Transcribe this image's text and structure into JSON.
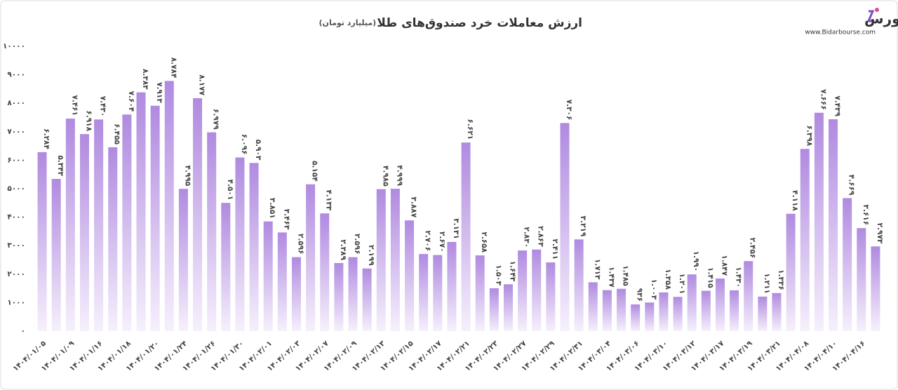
{
  "chart_data": {
    "type": "bar",
    "title": "ارزش معاملات خرد صندوق‌های طلا",
    "subtitle": "(میلیارد تومان)",
    "categories": [
      "۱۴۰۴/۰۱/۰۵",
      null,
      "۱۴۰۴/۰۱/۰۹",
      null,
      "۱۴۰۴/۰۱/۱۶",
      null,
      "۱۴۰۴/۰۱/۱۸",
      null,
      "۱۴۰۴/۰۱/۲۰",
      null,
      "۱۴۰۴/۰۱/۲۴",
      null,
      "۱۴۰۴/۰۱/۲۶",
      null,
      "۱۴۰۴/۰۱/۳۰",
      null,
      "۱۴۰۴/۰۲/۰۱",
      null,
      "۱۴۰۴/۰۲/۰۳",
      null,
      "۱۴۰۴/۰۲/۰۷",
      null,
      "۱۴۰۴/۰۲/۰۹",
      null,
      "۱۴۰۴/۰۲/۱۳",
      null,
      "۱۴۰۴/۰۲/۱۵",
      null,
      "۱۴۰۴/۰۲/۱۷",
      null,
      "۱۴۰۴/۰۲/۲۱",
      null,
      "۱۴۰۴/۰۲/۲۳",
      null,
      "۱۴۰۴/۰۲/۲۷",
      null,
      "۱۴۰۴/۰۲/۲۹",
      null,
      "۱۴۰۴/۰۲/۳۱",
      null,
      "۱۴۰۴/۰۳/۰۴",
      null,
      "۱۴۰۴/۰۳/۰۶",
      null,
      "۱۴۰۴/۰۳/۱۰",
      null,
      "۱۴۰۴/۰۳/۱۲",
      null,
      "۱۴۰۴/۰۳/۱۷",
      null,
      "۱۴۰۴/۰۳/۱۹",
      null,
      "۱۴۰۴/۰۳/۲۱",
      null,
      "۱۴۰۴/۰۴/۰۸",
      null,
      "۱۴۰۴/۰۴/۱۰",
      null,
      "۱۴۰۴/۰۴/۱۶",
      null
    ],
    "values": [
      6284,
      5343,
      7461,
      6918,
      7430,
      6455,
      7604,
      8383,
      7913,
      8784,
      4995,
      8177,
      6979,
      4501,
      6096,
      5903,
      3851,
      3463,
      2596,
      5154,
      4133,
      2389,
      2596,
      2199,
      4985,
      4999,
      3887,
      2706,
      2670,
      3131,
      6621,
      2658,
      1503,
      1643,
      2830,
      2863,
      2411,
      7306,
      3219,
      1713,
      1437,
      1485,
      936,
      1003,
      1358,
      1201,
      1990,
      1415,
      1847,
      1430,
      2456,
      1211,
      1336,
      4118,
      6398,
      7666,
      7439,
      4669,
      3616,
      2973
    ],
    "value_labels": [
      "۶.۲۸۴",
      "۵.۳۴۳",
      "۷.۴۶۱",
      "۶.۹۱۸",
      "۷.۴۳۰",
      "۶.۴۵۵",
      "۷.۶۰۴",
      "۸.۳۸۳",
      "۷.۹۱۳",
      "۸.۷۸۴",
      "۴.۹۹۵",
      "۸.۱۷۷",
      "۶.۹۷۹",
      "۴.۵۰۱",
      "۶.۰۹۶",
      "۵.۹۰۳",
      "۳.۸۵۱",
      "۳.۴۶۳",
      "۲.۵۹۶",
      "۵.۱۵۴",
      "۴.۱۳۳",
      "۲.۳۸۹",
      "۲.۵۹۶",
      "۲.۱۹۹",
      "۴.۹۸۵",
      "۴.۹۹۹",
      "۳.۸۸۷",
      "۲.۷۰۶",
      "۲.۶۷۰",
      "۳.۱۳۱",
      "۶.۶۲۱",
      "۲.۶۵۸",
      "۱.۵۰۳",
      "۱.۶۴۳",
      "۲.۸۳۰",
      "۲.۸۶۳",
      "۲.۴۱۱",
      "۷.۳۰۶",
      "۳.۲۱۹",
      "۱.۷۱۳",
      "۱.۴۳۷",
      "۱.۴۸۵",
      "۹۳۶",
      "۱.۰۰۳",
      "۱.۳۵۸",
      "۱.۲۰۱",
      "۱.۹۹۰",
      "۱.۴۱۵",
      "۱.۸۴۷",
      "۱.۴۳۰",
      "۲.۴۵۶",
      "۱.۲۱۱",
      "۱.۳۳۶",
      "۴.۱۱۸",
      "۶.۳۹۸",
      "۷.۶۶۶",
      "۷.۴۳۹",
      "۴.۶۶۹",
      "۳.۶۱۶",
      "۲.۹۷۳"
    ],
    "color": "#b08ae0",
    "ylim": [
      0,
      10000
    ],
    "yticks": [
      {
        "value": 0,
        "label": "۰"
      },
      {
        "value": 1000,
        "label": "۱۰۰۰"
      },
      {
        "value": 2000,
        "label": "۲۰۰۰"
      },
      {
        "value": 3000,
        "label": "۳۰۰۰"
      },
      {
        "value": 4000,
        "label": "۴۰۰۰"
      },
      {
        "value": 5000,
        "label": "۵۰۰۰"
      },
      {
        "value": 6000,
        "label": "۶۰۰۰"
      },
      {
        "value": 7000,
        "label": "۷۰۰۰"
      },
      {
        "value": 8000,
        "label": "۸۰۰۰"
      },
      {
        "value": 9000,
        "label": "۹۰۰۰"
      },
      {
        "value": 10000,
        "label": "۱۰۰۰۰"
      }
    ],
    "grid": false
  },
  "brand": {
    "name": "بیدار بورس",
    "url": "www.Bidarbourse.com"
  }
}
